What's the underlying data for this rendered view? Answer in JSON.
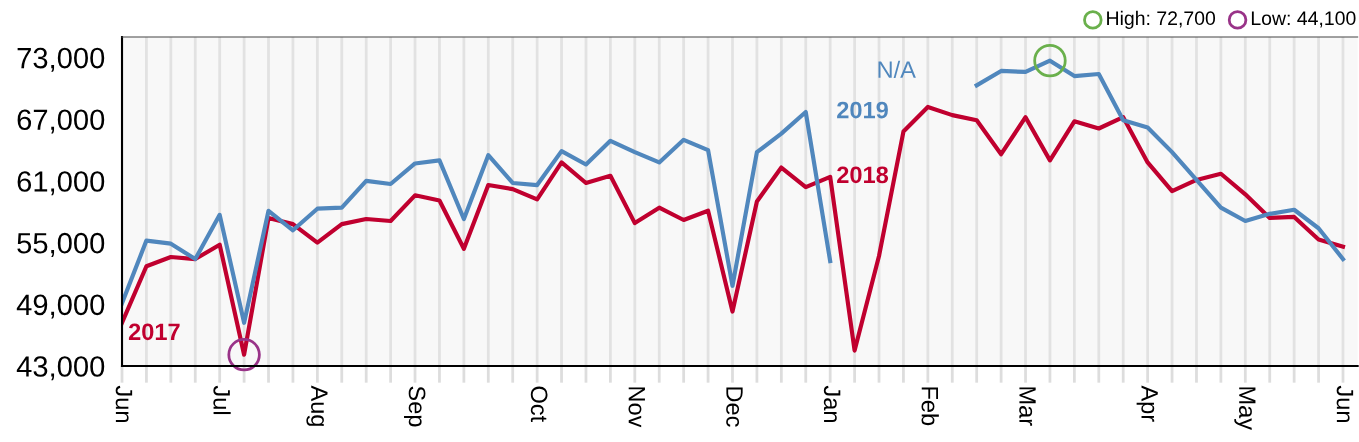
{
  "chart_data": {
    "type": "line",
    "categories": [
      "Jun",
      null,
      null,
      null,
      "Jul",
      null,
      null,
      null,
      "Aug",
      null,
      null,
      null,
      "Sep",
      null,
      null,
      null,
      null,
      "Oct",
      null,
      null,
      null,
      "Nov",
      null,
      null,
      null,
      "Dec",
      null,
      null,
      null,
      "Jan",
      null,
      null,
      null,
      "Feb",
      null,
      null,
      null,
      "Mar",
      null,
      null,
      null,
      null,
      "Apr",
      null,
      null,
      null,
      "May",
      null,
      null,
      null,
      "Jun"
    ],
    "series": [
      {
        "name": "2018",
        "color": "#c0002f",
        "values": [
          47200,
          52700,
          53600,
          53400,
          54800,
          44100,
          57400,
          56800,
          55000,
          56800,
          57300,
          57100,
          59600,
          59100,
          54400,
          60600,
          60200,
          59200,
          62800,
          60800,
          61500,
          56900,
          58400,
          57200,
          58100,
          48300,
          59000,
          62300,
          60400,
          61400,
          44500,
          53700,
          65800,
          68200,
          67400,
          66900,
          63600,
          67200,
          63000,
          66800,
          66100,
          67200,
          62800,
          60000,
          61100,
          61700,
          59700,
          57400,
          57500,
          55300,
          54600
        ]
      },
      {
        "name": "2019",
        "color": "#5087bd",
        "values": [
          49100,
          55200,
          54900,
          53400,
          57700,
          47200,
          58100,
          56200,
          58300,
          58400,
          61000,
          60700,
          62700,
          63000,
          57300,
          63500,
          60800,
          60600,
          63900,
          62600,
          64900,
          63800,
          62800,
          65000,
          64000,
          50800,
          63800,
          65600,
          67700,
          53200,
          null,
          null,
          null,
          null,
          null,
          70300,
          71700,
          71600,
          72700,
          71200,
          71400,
          66900,
          66200,
          63800,
          61100,
          58400,
          57100,
          57800,
          58200,
          56400,
          53400
        ]
      }
    ],
    "annotations": [
      "2017",
      "N/A",
      "High: 72,700",
      "Low: 44,100"
    ],
    "ylim": [
      43000,
      75000
    ],
    "yticks": [
      {
        "value": 43000,
        "label": "43,000"
      },
      {
        "value": 49000,
        "label": "49,000"
      },
      {
        "value": 55000,
        "label": "55,000"
      },
      {
        "value": 61000,
        "label": "61,000"
      },
      {
        "value": 67000,
        "label": "67,000"
      },
      {
        "value": 73000,
        "label": "73,000"
      }
    ],
    "grid": "x",
    "legend": false,
    "marker": "none",
    "line_style": "solid"
  }
}
